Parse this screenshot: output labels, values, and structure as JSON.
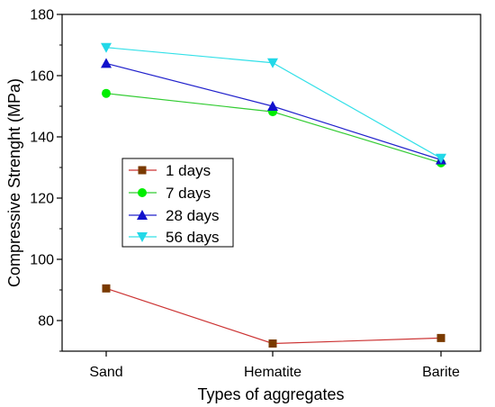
{
  "chart_data": {
    "type": "line",
    "categories": [
      "Sand",
      "Hematite",
      "Barite"
    ],
    "xlabel": "Types of aggregates",
    "ylabel": "Compressive Strenght (MPa)",
    "ylim": [
      70,
      180
    ],
    "yticks": [
      80,
      100,
      120,
      140,
      160,
      180
    ],
    "grid": false,
    "legend_position": "center-left",
    "series": [
      {
        "name": "1 days",
        "values": [
          90.5,
          72.5,
          74.3
        ],
        "color": "#cc3333",
        "marker": "square",
        "marker_color": "#7a3a00"
      },
      {
        "name": "7 days",
        "values": [
          154.2,
          148.2,
          131.5
        ],
        "color": "#33cc33",
        "marker": "circle",
        "marker_color": "#00ee00"
      },
      {
        "name": "28 days",
        "values": [
          164.0,
          150.0,
          132.5
        ],
        "color": "#2222cc",
        "marker": "triangle-up",
        "marker_color": "#1111cc"
      },
      {
        "name": "56 days",
        "values": [
          169.2,
          164.2,
          133.0
        ],
        "color": "#33e0e8",
        "marker": "triangle-down",
        "marker_color": "#22d8e8"
      }
    ]
  }
}
